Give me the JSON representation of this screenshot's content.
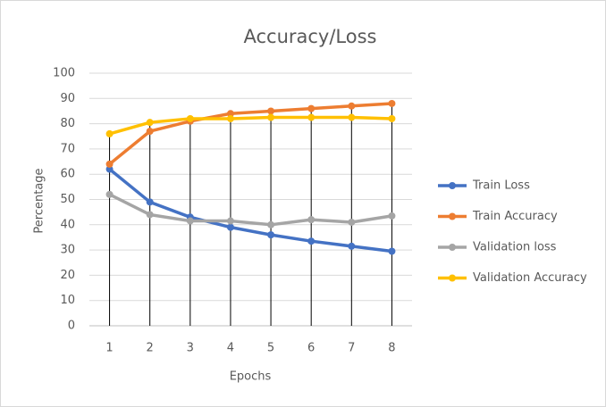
{
  "chart_data": {
    "type": "line",
    "title": "Accuracy/Loss",
    "xlabel": "Epochs",
    "ylabel": "Percentage",
    "categories": [
      1,
      2,
      3,
      4,
      5,
      6,
      7,
      8
    ],
    "series": [
      {
        "name": "Train Loss",
        "color": "#4472c4",
        "values": [
          62,
          49,
          43,
          39,
          36,
          33.5,
          31.5,
          29.5
        ]
      },
      {
        "name": "Train Accuracy",
        "color": "#ed7d31",
        "values": [
          64,
          77,
          81,
          84,
          85,
          86,
          87,
          88
        ]
      },
      {
        "name": "Validation loss",
        "color": "#a5a5a5",
        "values": [
          52,
          44,
          41.5,
          41.5,
          40,
          42,
          41,
          43.5
        ]
      },
      {
        "name": "Validation Accuracy",
        "color": "#ffc000",
        "values": [
          76,
          80.5,
          82,
          82,
          82.5,
          82.5,
          82.5,
          82
        ]
      }
    ],
    "ylim": [
      0,
      100
    ],
    "yticks": [
      0,
      10,
      20,
      30,
      40,
      50,
      60,
      70,
      80,
      90,
      100
    ],
    "grid": true,
    "legend": "right",
    "drop_lines": true
  }
}
